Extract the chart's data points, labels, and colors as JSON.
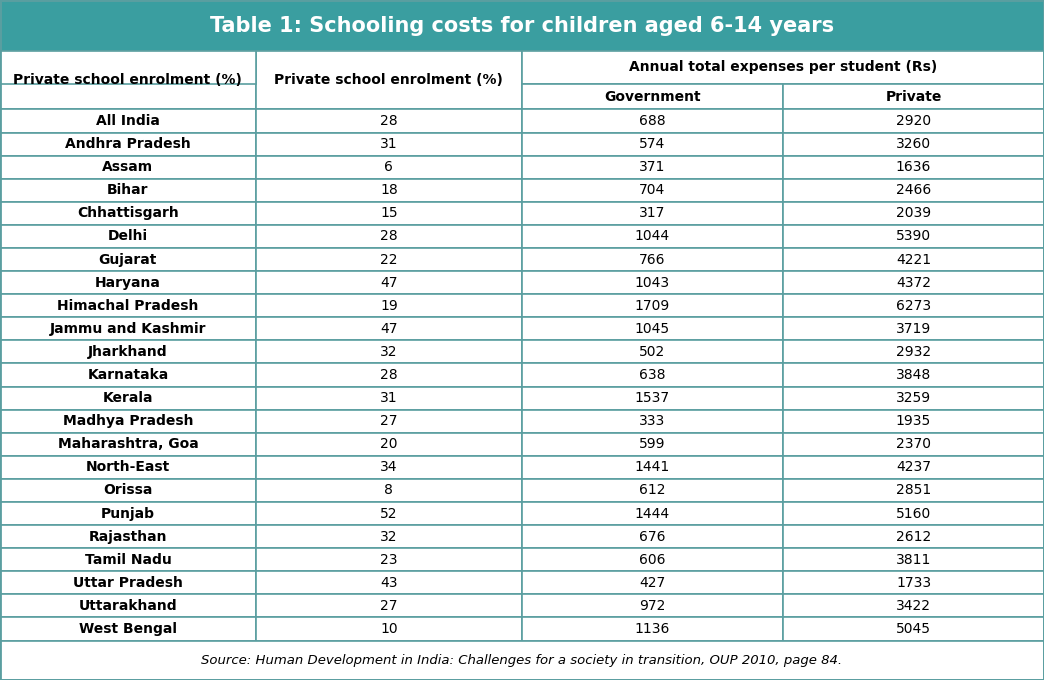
{
  "title": "Table 1: Schooling costs for children aged 6-14 years",
  "title_bg_color": "#3a9ea0",
  "title_text_color": "#ffffff",
  "col_header_1": "Private school enrolment (%)",
  "col_header_2": "Annual total expenses per student (Rs)",
  "col_header_2a": "Government",
  "col_header_2b": "Private",
  "footnote": "Source: Human Development in India: Challenges for a society in transition, OUP 2010, page 84.",
  "rows": [
    [
      "All India",
      "28",
      "688",
      "2920"
    ],
    [
      "Andhra Pradesh",
      "31",
      "574",
      "3260"
    ],
    [
      "Assam",
      "6",
      "371",
      "1636"
    ],
    [
      "Bihar",
      "18",
      "704",
      "2466"
    ],
    [
      "Chhattisgarh",
      "15",
      "317",
      "2039"
    ],
    [
      "Delhi",
      "28",
      "1044",
      "5390"
    ],
    [
      "Gujarat",
      "22",
      "766",
      "4221"
    ],
    [
      "Haryana",
      "47",
      "1043",
      "4372"
    ],
    [
      "Himachal Pradesh",
      "19",
      "1709",
      "6273"
    ],
    [
      "Jammu and Kashmir",
      "47",
      "1045",
      "3719"
    ],
    [
      "Jharkhand",
      "32",
      "502",
      "2932"
    ],
    [
      "Karnataka",
      "28",
      "638",
      "3848"
    ],
    [
      "Kerala",
      "31",
      "1537",
      "3259"
    ],
    [
      "Madhya Pradesh",
      "27",
      "333",
      "1935"
    ],
    [
      "Maharashtra, Goa",
      "20",
      "599",
      "2370"
    ],
    [
      "North-East",
      "34",
      "1441",
      "4237"
    ],
    [
      "Orissa",
      "8",
      "612",
      "2851"
    ],
    [
      "Punjab",
      "52",
      "1444",
      "5160"
    ],
    [
      "Rajasthan",
      "32",
      "676",
      "2612"
    ],
    [
      "Tamil Nadu",
      "23",
      "606",
      "3811"
    ],
    [
      "Uttar Pradesh",
      "43",
      "427",
      "1733"
    ],
    [
      "Uttarakhand",
      "27",
      "972",
      "3422"
    ],
    [
      "West Bengal",
      "10",
      "1136",
      "5045"
    ]
  ],
  "border_color": "#5a9ea0",
  "header_bg": "#ffffff",
  "font_size_title": 15,
  "font_size_header": 10,
  "font_size_data": 10,
  "font_size_footnote": 9.5
}
